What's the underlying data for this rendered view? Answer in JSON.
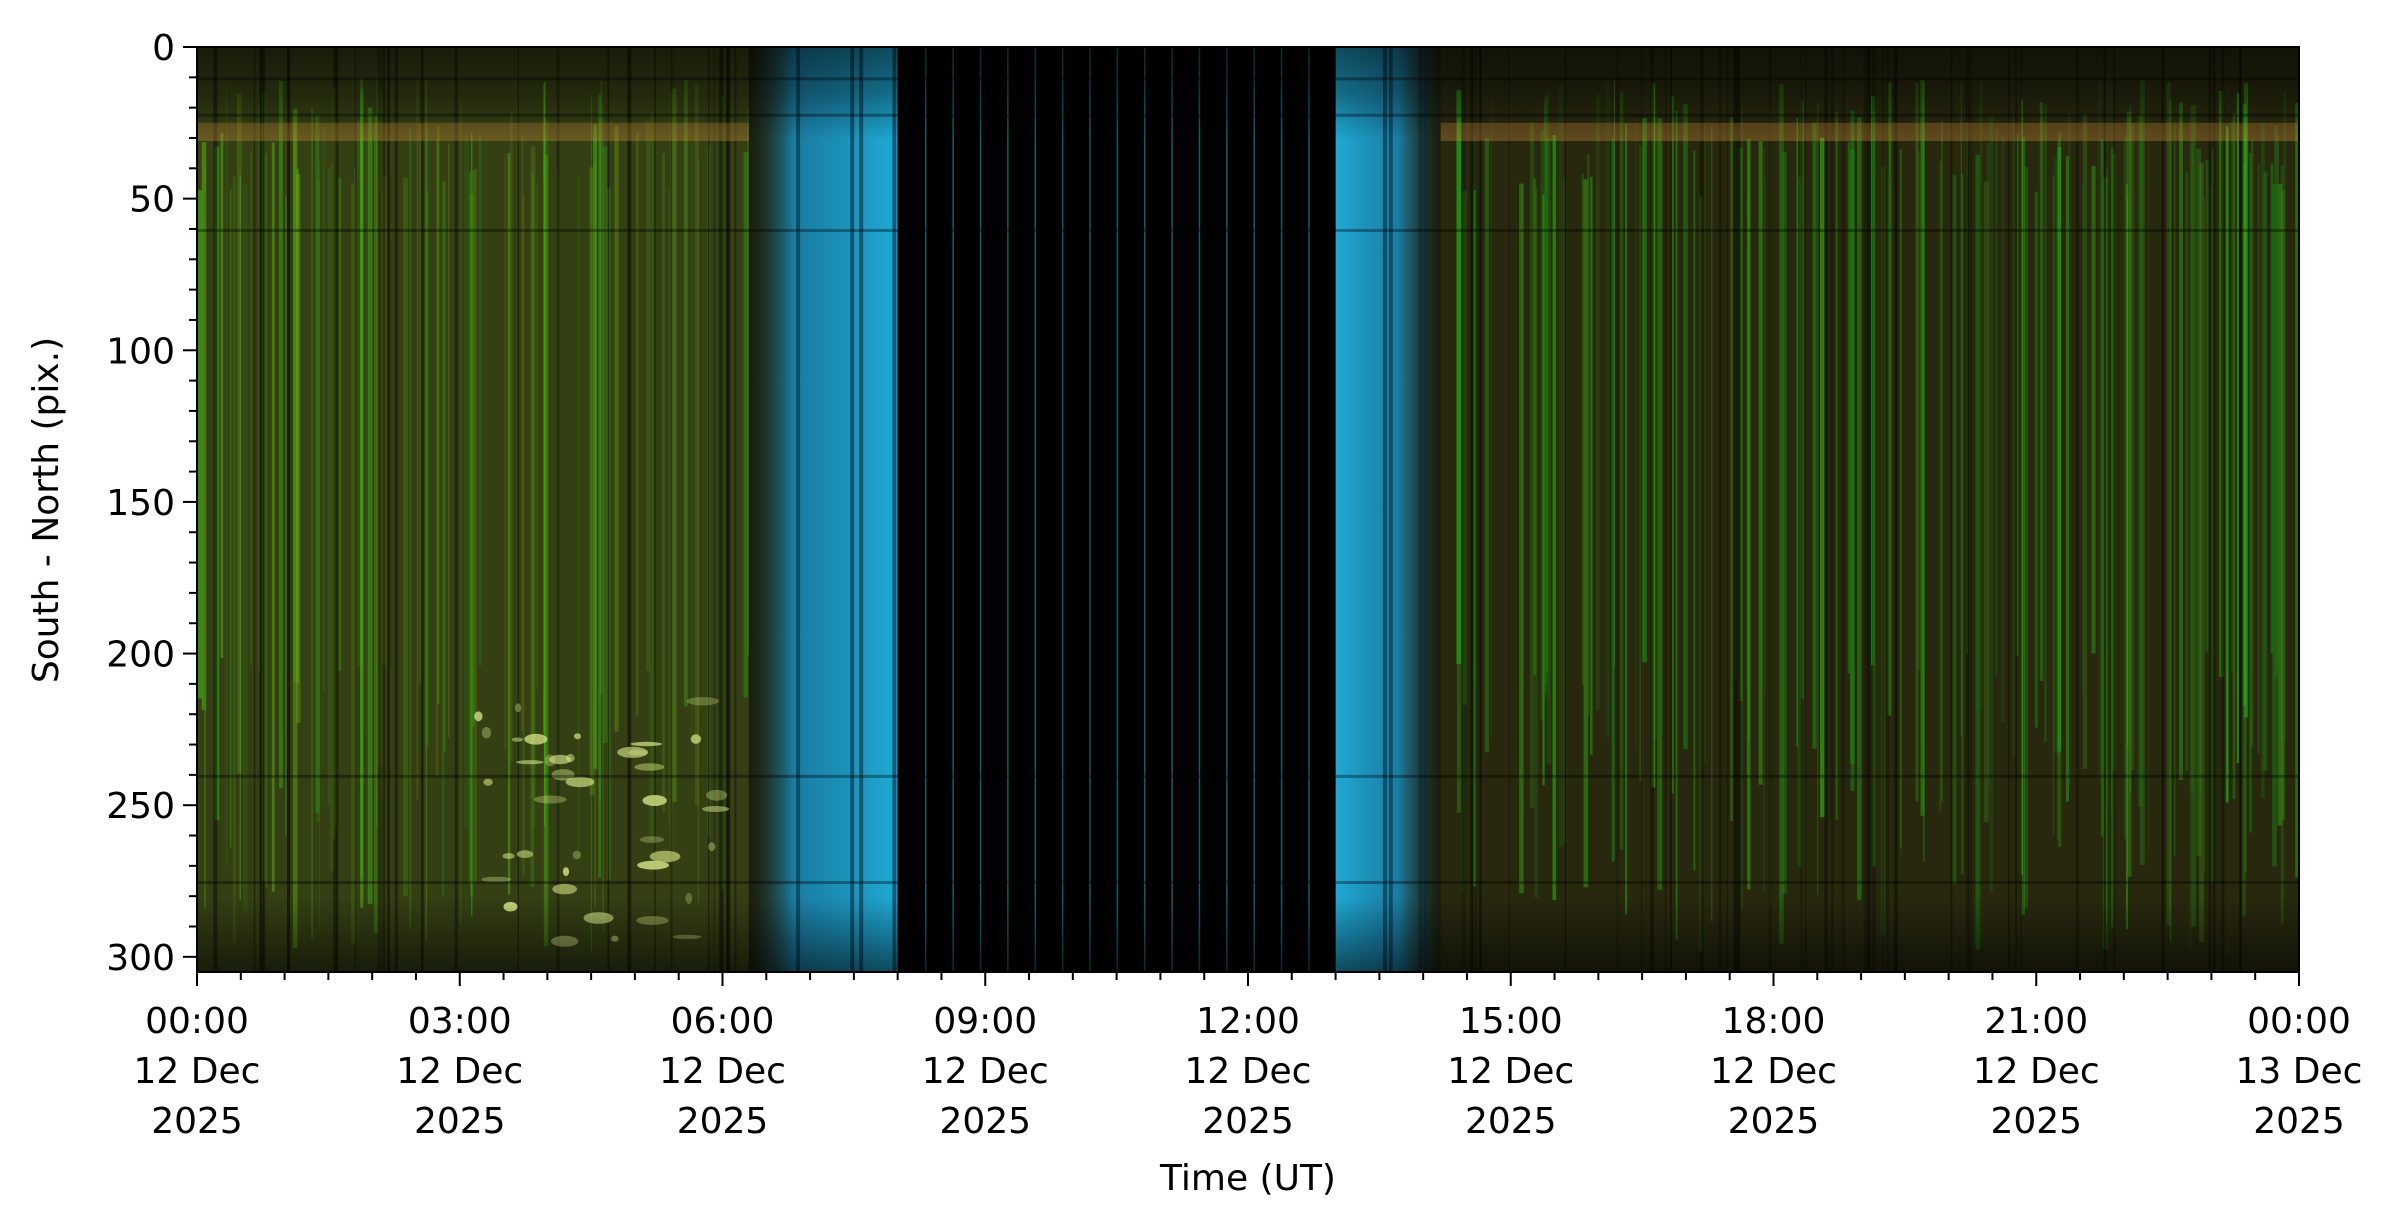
{
  "chart_data": {
    "type": "heatmap",
    "title": "",
    "xlabel": "Time (UT)",
    "ylabel": "South - North (pix.)",
    "x_range": [
      "2025-12-12 00:00",
      "2025-12-13 00:00"
    ],
    "ylim": [
      0,
      305
    ],
    "y_inverted": true,
    "grid": false,
    "x_ticks": [
      {
        "time": "00:00",
        "date": "12 Dec",
        "year": "2025"
      },
      {
        "time": "03:00",
        "date": "12 Dec",
        "year": "2025"
      },
      {
        "time": "06:00",
        "date": "12 Dec",
        "year": "2025"
      },
      {
        "time": "09:00",
        "date": "12 Dec",
        "year": "2025"
      },
      {
        "time": "12:00",
        "date": "12 Dec",
        "year": "2025"
      },
      {
        "time": "15:00",
        "date": "12 Dec",
        "year": "2025"
      },
      {
        "time": "18:00",
        "date": "12 Dec",
        "year": "2025"
      },
      {
        "time": "21:00",
        "date": "12 Dec",
        "year": "2025"
      },
      {
        "time": "00:00",
        "date": "13 Dec",
        "year": "2025"
      }
    ],
    "y_ticks": [
      0,
      50,
      100,
      150,
      200,
      250,
      300
    ],
    "regions": [
      {
        "start_hour": 0.0,
        "end_hour": 6.3,
        "appearance": "green-yellow aurora streaks"
      },
      {
        "start_hour": 6.3,
        "end_hour": 8.0,
        "appearance": "cyan twilight"
      },
      {
        "start_hour": 8.0,
        "end_hour": 13.0,
        "appearance": "black (daylight, no data)"
      },
      {
        "start_hour": 13.0,
        "end_hour": 14.2,
        "appearance": "cyan twilight"
      },
      {
        "start_hour": 14.2,
        "end_hour": 24.0,
        "appearance": "green aurora streaks"
      }
    ],
    "colors": {
      "background_dark": "#1a1e0c",
      "aurora_green": "#3fa51c",
      "aurora_yellow": "#dcec8c",
      "twilight_cyan": "#1fa9d4",
      "night_black": "#000000",
      "horizon_orange": "#c88a3a"
    }
  }
}
